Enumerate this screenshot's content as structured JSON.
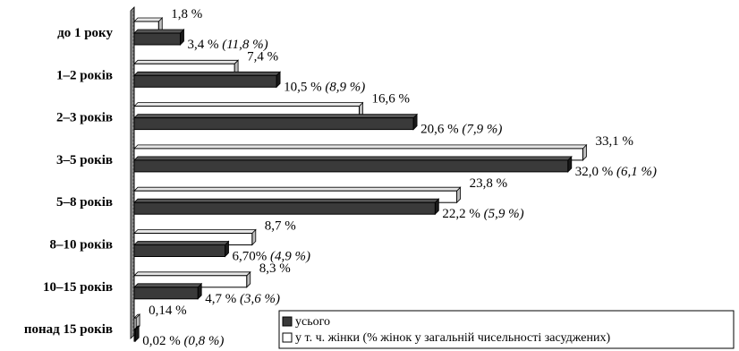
{
  "chart_data": {
    "type": "bar",
    "orientation": "horizontal",
    "categories": [
      "до 1 року",
      "1–2 років",
      "2–3 років",
      "3–5 років",
      "5–8 років",
      "8–10 років",
      "10–15 років",
      "понад 15 років"
    ],
    "series": [
      {
        "name": "у т. ч. жінки (% жінок  у загальній чисельності засуджених)",
        "color": "#ffffff",
        "values": [
          1.8,
          7.4,
          16.6,
          33.1,
          23.8,
          8.7,
          8.3,
          0.14
        ],
        "labels": [
          "1,8 %",
          "7,4 %",
          "16,6 %",
          "33,1 %",
          "23,8 %",
          "8,7 %",
          "8,3 %",
          "0,14 %"
        ]
      },
      {
        "name": "усього",
        "color": "#3a3a3a",
        "values": [
          3.4,
          10.5,
          20.6,
          32.0,
          22.2,
          6.7,
          4.7,
          0.02
        ],
        "labels": [
          "3,4 %",
          "10,5 %",
          "20,6 %",
          "32,0 %",
          "22,2 %",
          "6,70%",
          "4,7 %",
          "0,02 %"
        ],
        "women_share_labels": [
          "(11,8 %)",
          "(8,9 %)",
          "(7,9 %)",
          "(6,1 %)",
          "(5,9 %)",
          "(4,9 %)",
          "(3,6 %)",
          "(0,8 %)"
        ]
      }
    ],
    "xlim": [
      0,
      35
    ],
    "legend": {
      "position": "bottom-right",
      "entries": [
        "усього",
        "у т. ч. жінки (% жінок  у загальній чисельності засуджених)"
      ]
    },
    "title": "",
    "xlabel": "",
    "ylabel": "",
    "grid": false
  }
}
